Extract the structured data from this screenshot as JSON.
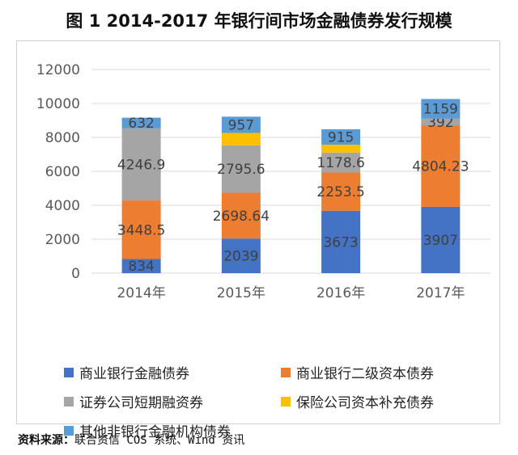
{
  "title": "图 1  2014-2017 年银行间市场金融债券发行规模",
  "source": {
    "label": "资料来源：",
    "text": "联合资信 COS 系统、Wind 资讯"
  },
  "colors": {
    "series": [
      "#4472c4",
      "#ed7d31",
      "#a5a5a5",
      "#ffc000",
      "#5b9bd5"
    ],
    "axis_text": "#595959",
    "grid": "#d9d9d9",
    "label_text": "#404040"
  },
  "chart_data": {
    "type": "bar",
    "stacked": true,
    "categories": [
      "2014年",
      "2015年",
      "2016年",
      "2017年"
    ],
    "ylim": [
      0,
      12000
    ],
    "yticks": [
      0,
      2000,
      4000,
      6000,
      8000,
      10000,
      12000
    ],
    "grid": true,
    "legend_position": "bottom",
    "series": [
      {
        "name": "商业银行金融债券",
        "values": [
          834,
          2039,
          3673,
          3907
        ],
        "labels": [
          "834",
          "2039",
          "3673",
          "3907"
        ]
      },
      {
        "name": "商业银行二级资本债券",
        "values": [
          3448.5,
          2698.64,
          2253.5,
          4804.23
        ],
        "labels": [
          "3448.5",
          "2698.64",
          "2253.5",
          "4804.23"
        ]
      },
      {
        "name": "证券公司短期融资券",
        "values": [
          4246.9,
          2795.6,
          1178.6,
          392
        ],
        "labels": [
          "4246.9",
          "2795.6",
          "1178.6",
          "392"
        ]
      },
      {
        "name": "保险公司资本补充债券",
        "values": [
          0,
          730,
          460,
          0
        ],
        "labels": [
          "",
          "",
          "",
          ""
        ]
      },
      {
        "name": "其他非银行金融机构债券",
        "values": [
          632,
          957,
          915,
          1159
        ],
        "labels": [
          "632",
          "957",
          "915",
          "1159"
        ]
      }
    ]
  }
}
